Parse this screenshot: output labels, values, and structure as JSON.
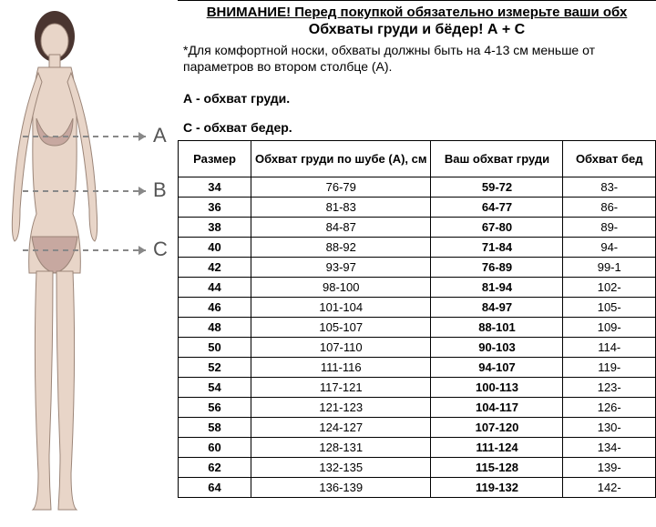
{
  "header": {
    "warning": "ВНИМАНИЕ! Перед покупкой обязательно измерьте ваши обх",
    "subtitle": "Обхваты груди и бёдер! А + С",
    "note": "*Для комфортной носки, обхваты должны быть на 4-13 см меньше от параметров во втором столбце (А)."
  },
  "sections": {
    "a": "А - обхват груди.",
    "c": "С - обхват бедер."
  },
  "labels": {
    "A": "A",
    "B": "B",
    "C": "C"
  },
  "table": {
    "columns": [
      "Размер",
      "Обхват груди по шубе (А), см",
      "Ваш обхват груди",
      "Обхват бед"
    ],
    "rows": [
      [
        "34",
        "76-79",
        "59-72",
        "83-"
      ],
      [
        "36",
        "81-83",
        "64-77",
        "86-"
      ],
      [
        "38",
        "84-87",
        "67-80",
        "89-"
      ],
      [
        "40",
        "88-92",
        "71-84",
        "94-"
      ],
      [
        "42",
        "93-97",
        "76-89",
        "99-1"
      ],
      [
        "44",
        "98-100",
        "81-94",
        "102-"
      ],
      [
        "46",
        "101-104",
        "84-97",
        "105-"
      ],
      [
        "48",
        "105-107",
        "88-101",
        "109-"
      ],
      [
        "50",
        "107-110",
        "90-103",
        "114-"
      ],
      [
        "52",
        "111-116",
        "94-107",
        "119-"
      ],
      [
        "54",
        "117-121",
        "100-113",
        "123-"
      ],
      [
        "56",
        "121-123",
        "104-117",
        "126-"
      ],
      [
        "58",
        "124-127",
        "107-120",
        "130-"
      ],
      [
        "60",
        "128-131",
        "111-124",
        "134-"
      ],
      [
        "62",
        "132-135",
        "115-128",
        "139-"
      ],
      [
        "64",
        "136-139",
        "119-132",
        "142-"
      ]
    ]
  },
  "figure": {
    "skin": "#e8d5c8",
    "outline": "#9b8578",
    "garment": "#c7a8a0",
    "hair": "#4a3530",
    "dash": "#888888"
  }
}
